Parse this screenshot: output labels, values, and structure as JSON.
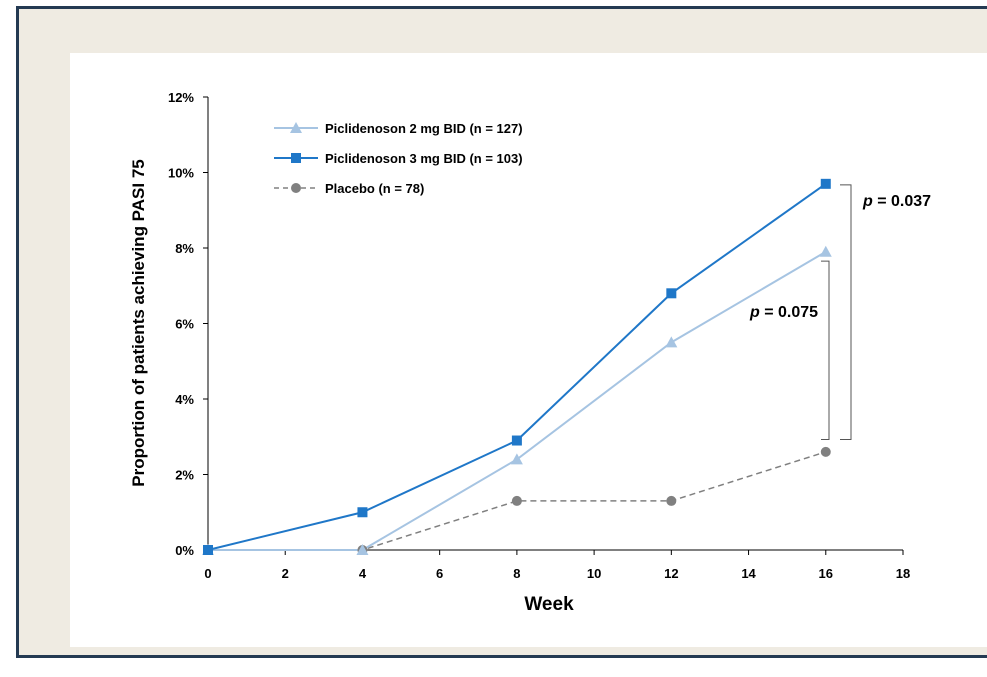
{
  "chart_data": {
    "type": "line",
    "title": "",
    "xlabel": "Week",
    "ylabel": "Proportion of patients achieving PASI 75",
    "xlim": [
      0,
      18
    ],
    "ylim": [
      0,
      12
    ],
    "x_ticks": [
      "0",
      "2",
      "4",
      "6",
      "8",
      "10",
      "12",
      "14",
      "16",
      "18"
    ],
    "y_ticks": [
      "0%",
      "2%",
      "4%",
      "6%",
      "8%",
      "10%",
      "12%"
    ],
    "grid": false,
    "legend_position": "top-left",
    "series": [
      {
        "name": "Piclidenoson 2 mg BID (n = 127)",
        "color": "#a6c4e2",
        "marker": "triangle",
        "dash": "solid",
        "x": [
          0,
          4,
          8,
          12,
          16
        ],
        "y": [
          0,
          0,
          2.4,
          5.5,
          7.9
        ]
      },
      {
        "name": "Piclidenoson 3 mg BID (n = 103)",
        "color": "#1f77c8",
        "marker": "square",
        "dash": "solid",
        "x": [
          0,
          4,
          8,
          12,
          16
        ],
        "y": [
          0,
          1.0,
          2.9,
          6.8,
          9.7
        ]
      },
      {
        "name": "Placebo (n = 78)",
        "color": "#808080",
        "marker": "circle",
        "dash": "dashed",
        "x": [
          0,
          4,
          8,
          12,
          16
        ],
        "y": [
          0,
          0,
          1.3,
          1.3,
          2.6
        ]
      }
    ],
    "annotations": [
      {
        "p_label": "p",
        "value_text": " = 0.037",
        "from_y": 9.7,
        "to_y": 2.9,
        "at_x": 16
      },
      {
        "p_label": "p",
        "value_text": " = 0.075",
        "from_y": 7.6,
        "to_y": 2.9,
        "at_x": 16
      }
    ]
  }
}
